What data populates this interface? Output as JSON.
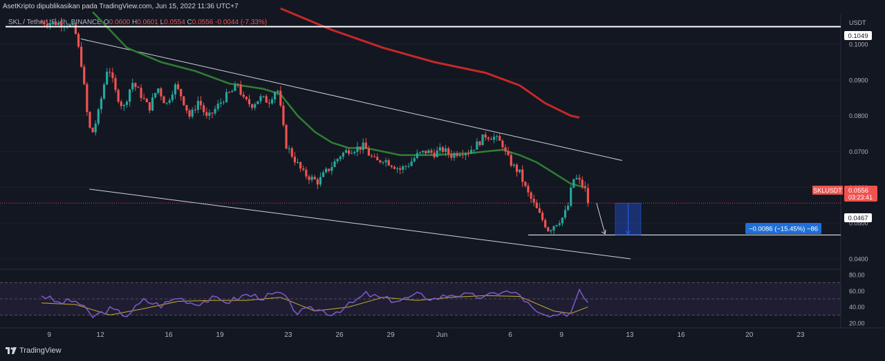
{
  "header": {
    "publisher_line": "AsetKripto dipublikasikan pada TradingView.com, Jun 15, 2022 11:36 UTC+7"
  },
  "legend": {
    "symbol": "SKL / TetherUS, 4h, BINANCE",
    "open_label": "O",
    "open": "0.0600",
    "high_label": "H",
    "high": "0.0601",
    "low_label": "L",
    "low": "0.0554",
    "close_label": "C",
    "close": "0.0556",
    "change": "-0.0044 (-7.33%)"
  },
  "price_axis": {
    "unit": "USDT",
    "ticks": [
      "0.1000",
      "0.0900",
      "0.0800",
      "0.0700",
      "0.0600",
      "0.0500",
      "0.0400"
    ],
    "tags": {
      "resistance": "0.1049",
      "symbol_tag": "SKLUSDT",
      "last_price": "0.0556",
      "countdown": "03:23:41",
      "target": "0.0467"
    }
  },
  "measure_label": "−0.0086 (−15.45%) −86",
  "rsi_axis": {
    "ticks": [
      "80.00",
      "60.00",
      "40.00",
      "20.00"
    ]
  },
  "time_axis": {
    "ticks": [
      "9",
      "12",
      "16",
      "19",
      "23",
      "26",
      "29",
      "Jun",
      "6",
      "9",
      "13",
      "16",
      "20",
      "23"
    ]
  },
  "footer": {
    "brand": "TradingView"
  },
  "colors": {
    "background": "#131722",
    "up_candle": "#26a69a",
    "down_candle": "#ef5350",
    "ma_fast": "#2e7d32",
    "ma_slow": "#c62828",
    "rsi_line": "#7e57c2",
    "rsi_signal": "#c9b028",
    "measure": "#2962ff"
  },
  "chart_data": [
    {
      "type": "candlestick",
      "symbol": "SKL / TetherUS",
      "interval": "4h",
      "exchange": "BINANCE",
      "ylim": [
        0.0375,
        0.1085
      ],
      "x_range": [
        "May 8",
        "Jun 24"
      ],
      "horizontal_levels": [
        0.1049,
        0.0467
      ],
      "last_price": 0.0556,
      "measure": {
        "change": -0.0086,
        "percent": -15.45,
        "bars": -86
      },
      "close_path": [
        {
          "x": 0,
          "y": 0.1062
        },
        {
          "x": 1.5,
          "y": 0.1058
        },
        {
          "x": 1.95,
          "y": 0.104
        },
        {
          "x": 2.4,
          "y": 0.093
        },
        {
          "x": 2.6,
          "y": 0.083
        },
        {
          "x": 2.8,
          "y": 0.0765
        },
        {
          "x": 3.0,
          "y": 0.0755
        },
        {
          "x": 3.3,
          "y": 0.08
        },
        {
          "x": 3.9,
          "y": 0.0945
        },
        {
          "x": 4.3,
          "y": 0.087
        },
        {
          "x": 4.8,
          "y": 0.082
        },
        {
          "x": 5.3,
          "y": 0.0895
        },
        {
          "x": 5.8,
          "y": 0.086
        },
        {
          "x": 6.3,
          "y": 0.082
        },
        {
          "x": 6.8,
          "y": 0.088
        },
        {
          "x": 7.3,
          "y": 0.083
        },
        {
          "x": 7.8,
          "y": 0.0885
        },
        {
          "x": 8.2,
          "y": 0.0855
        },
        {
          "x": 8.7,
          "y": 0.0795
        },
        {
          "x": 9.2,
          "y": 0.0845
        },
        {
          "x": 9.7,
          "y": 0.079
        },
        {
          "x": 10.2,
          "y": 0.082
        },
        {
          "x": 10.7,
          "y": 0.085
        },
        {
          "x": 11.2,
          "y": 0.087
        },
        {
          "x": 11.5,
          "y": 0.089
        },
        {
          "x": 11.8,
          "y": 0.0845
        },
        {
          "x": 12.3,
          "y": 0.083
        },
        {
          "x": 12.8,
          "y": 0.085
        },
        {
          "x": 13.3,
          "y": 0.084
        },
        {
          "x": 13.8,
          "y": 0.088
        },
        {
          "x": 14.0,
          "y": 0.082
        },
        {
          "x": 14.3,
          "y": 0.072
        },
        {
          "x": 14.8,
          "y": 0.068
        },
        {
          "x": 15.3,
          "y": 0.064
        },
        {
          "x": 15.8,
          "y": 0.0625
        },
        {
          "x": 16.2,
          "y": 0.0615
        },
        {
          "x": 16.6,
          "y": 0.064
        },
        {
          "x": 17.0,
          "y": 0.066
        },
        {
          "x": 17.5,
          "y": 0.069
        },
        {
          "x": 18.0,
          "y": 0.0705
        },
        {
          "x": 18.5,
          "y": 0.071
        },
        {
          "x": 18.9,
          "y": 0.0715
        },
        {
          "x": 19.2,
          "y": 0.069
        },
        {
          "x": 19.6,
          "y": 0.067
        },
        {
          "x": 20.0,
          "y": 0.068
        },
        {
          "x": 20.5,
          "y": 0.0665
        },
        {
          "x": 21.0,
          "y": 0.065
        },
        {
          "x": 21.5,
          "y": 0.0665
        },
        {
          "x": 22.0,
          "y": 0.069
        },
        {
          "x": 22.5,
          "y": 0.07
        },
        {
          "x": 23.0,
          "y": 0.0695
        },
        {
          "x": 23.5,
          "y": 0.0705
        },
        {
          "x": 24.0,
          "y": 0.069
        },
        {
          "x": 24.5,
          "y": 0.07
        },
        {
          "x": 25.0,
          "y": 0.07
        },
        {
          "x": 25.5,
          "y": 0.072
        },
        {
          "x": 26.0,
          "y": 0.0745
        },
        {
          "x": 26.5,
          "y": 0.074
        },
        {
          "x": 27.0,
          "y": 0.072
        },
        {
          "x": 27.2,
          "y": 0.069
        },
        {
          "x": 27.6,
          "y": 0.066
        },
        {
          "x": 28.0,
          "y": 0.064
        },
        {
          "x": 28.4,
          "y": 0.059
        },
        {
          "x": 28.8,
          "y": 0.0555
        },
        {
          "x": 29.2,
          "y": 0.052
        },
        {
          "x": 29.7,
          "y": 0.048
        },
        {
          "x": 30.0,
          "y": 0.0495
        },
        {
          "x": 30.5,
          "y": 0.0515
        },
        {
          "x": 30.8,
          "y": 0.054
        },
        {
          "x": 31.0,
          "y": 0.059
        },
        {
          "x": 31.2,
          "y": 0.063
        },
        {
          "x": 31.5,
          "y": 0.0615
        },
        {
          "x": 31.8,
          "y": 0.06
        },
        {
          "x": 32.0,
          "y": 0.0556
        }
      ],
      "ma_fast": [
        {
          "x": 3.0,
          "y": 0.109
        },
        {
          "x": 5.0,
          "y": 0.099
        },
        {
          "x": 7.0,
          "y": 0.095
        },
        {
          "x": 9.0,
          "y": 0.0925
        },
        {
          "x": 11.0,
          "y": 0.089
        },
        {
          "x": 13.0,
          "y": 0.0875
        },
        {
          "x": 14.0,
          "y": 0.086
        },
        {
          "x": 15.0,
          "y": 0.08
        },
        {
          "x": 16.0,
          "y": 0.0755
        },
        {
          "x": 17.0,
          "y": 0.0725
        },
        {
          "x": 18.0,
          "y": 0.071
        },
        {
          "x": 19.0,
          "y": 0.071
        },
        {
          "x": 21.0,
          "y": 0.069
        },
        {
          "x": 23.0,
          "y": 0.069
        },
        {
          "x": 25.0,
          "y": 0.0695
        },
        {
          "x": 27.0,
          "y": 0.0705
        },
        {
          "x": 28.0,
          "y": 0.069
        },
        {
          "x": 29.0,
          "y": 0.067
        },
        {
          "x": 30.0,
          "y": 0.064
        },
        {
          "x": 31.0,
          "y": 0.061
        },
        {
          "x": 31.8,
          "y": 0.06
        }
      ],
      "ma_slow": [
        {
          "x": 14.0,
          "y": 0.11
        },
        {
          "x": 17.0,
          "y": 0.104
        },
        {
          "x": 20.0,
          "y": 0.099
        },
        {
          "x": 23.0,
          "y": 0.095
        },
        {
          "x": 26.0,
          "y": 0.092
        },
        {
          "x": 28.0,
          "y": 0.0885
        },
        {
          "x": 29.5,
          "y": 0.0835
        },
        {
          "x": 31.0,
          "y": 0.08
        },
        {
          "x": 31.5,
          "y": 0.0795
        }
      ],
      "channel_upper": [
        {
          "x": 2.3,
          "y": 0.1015
        },
        {
          "x": 34.0,
          "y": 0.0675
        }
      ],
      "channel_lower": [
        {
          "x": 2.8,
          "y": 0.0595
        },
        {
          "x": 34.5,
          "y": 0.04
        }
      ],
      "projection_arrow": [
        {
          "x": 32.5,
          "y": 0.0556
        },
        {
          "x": 33.0,
          "y": 0.047
        }
      ]
    },
    {
      "type": "line",
      "indicator": "RSI",
      "ylim": [
        15,
        85
      ],
      "bands": [
        70,
        50,
        30
      ],
      "rsi": [
        {
          "x": 0,
          "y": 55
        },
        {
          "x": 1,
          "y": 45
        },
        {
          "x": 2,
          "y": 48
        },
        {
          "x": 3,
          "y": 28
        },
        {
          "x": 4,
          "y": 37
        },
        {
          "x": 5,
          "y": 30
        },
        {
          "x": 6,
          "y": 48
        },
        {
          "x": 7,
          "y": 42
        },
        {
          "x": 8,
          "y": 52
        },
        {
          "x": 9,
          "y": 44
        },
        {
          "x": 10,
          "y": 50
        },
        {
          "x": 11,
          "y": 47
        },
        {
          "x": 12,
          "y": 55
        },
        {
          "x": 13,
          "y": 52
        },
        {
          "x": 14,
          "y": 57
        },
        {
          "x": 15,
          "y": 33
        },
        {
          "x": 16,
          "y": 38
        },
        {
          "x": 17,
          "y": 32
        },
        {
          "x": 18,
          "y": 42
        },
        {
          "x": 19,
          "y": 56
        },
        {
          "x": 20,
          "y": 50
        },
        {
          "x": 21,
          "y": 48
        },
        {
          "x": 22,
          "y": 55
        },
        {
          "x": 23,
          "y": 50
        },
        {
          "x": 24,
          "y": 56
        },
        {
          "x": 25,
          "y": 54
        },
        {
          "x": 26,
          "y": 52
        },
        {
          "x": 27,
          "y": 60
        },
        {
          "x": 28,
          "y": 55
        },
        {
          "x": 29,
          "y": 32
        },
        {
          "x": 30,
          "y": 26
        },
        {
          "x": 31,
          "y": 34
        },
        {
          "x": 31.5,
          "y": 63
        },
        {
          "x": 32,
          "y": 47
        }
      ],
      "signal": [
        {
          "x": 0,
          "y": 45
        },
        {
          "x": 2,
          "y": 43
        },
        {
          "x": 4,
          "y": 30
        },
        {
          "x": 6,
          "y": 38
        },
        {
          "x": 8,
          "y": 47
        },
        {
          "x": 10,
          "y": 48
        },
        {
          "x": 12,
          "y": 48
        },
        {
          "x": 14,
          "y": 52
        },
        {
          "x": 16,
          "y": 35
        },
        {
          "x": 18,
          "y": 40
        },
        {
          "x": 20,
          "y": 52
        },
        {
          "x": 22,
          "y": 48
        },
        {
          "x": 24,
          "y": 52
        },
        {
          "x": 26,
          "y": 54
        },
        {
          "x": 28,
          "y": 53
        },
        {
          "x": 30,
          "y": 35
        },
        {
          "x": 31,
          "y": 32
        },
        {
          "x": 32,
          "y": 40
        }
      ]
    }
  ]
}
